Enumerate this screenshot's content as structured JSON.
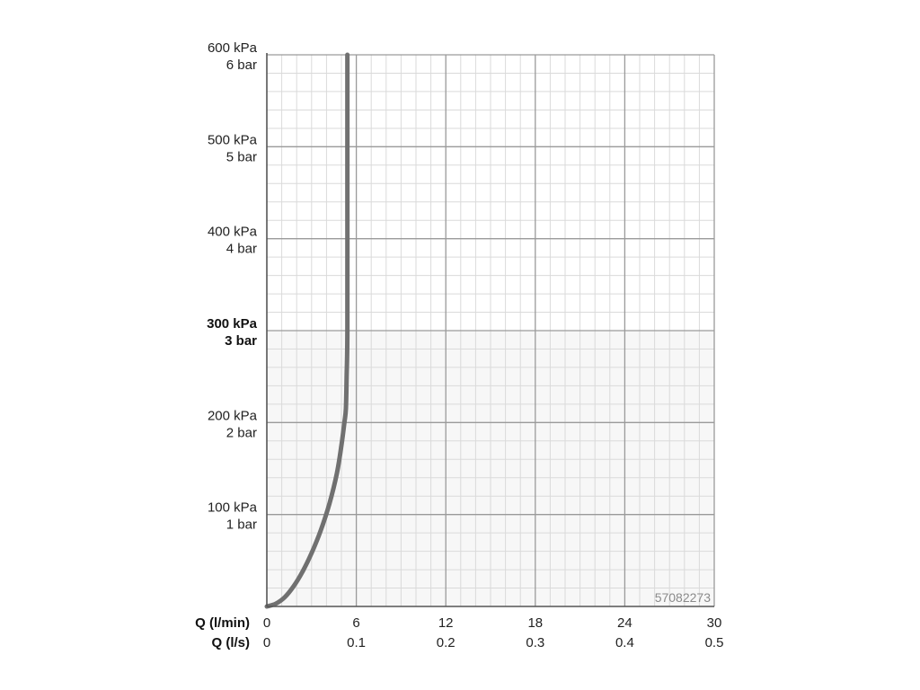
{
  "chart_data": {
    "type": "line",
    "title": "",
    "product_code": "57082273",
    "y_ticks": [
      {
        "value": 0,
        "kpa": "",
        "bar": "",
        "bold": false
      },
      {
        "value": 100,
        "kpa": "100 kPa",
        "bar": "1 bar",
        "bold": false
      },
      {
        "value": 200,
        "kpa": "200 kPa",
        "bar": "2 bar",
        "bold": false
      },
      {
        "value": 300,
        "kpa": "300 kPa",
        "bar": "3 bar",
        "bold": true
      },
      {
        "value": 400,
        "kpa": "400 kPa",
        "bar": "4 bar",
        "bold": false
      },
      {
        "value": 500,
        "kpa": "500 kPa",
        "bar": "5 bar",
        "bold": false
      },
      {
        "value": 600,
        "kpa": "600 kPa",
        "bar": "6 bar",
        "bold": false
      }
    ],
    "x_axis_primary_label": "Q (l/min)",
    "x_axis_secondary_label": "Q (l/s)",
    "x_ticks": [
      {
        "value": 0,
        "lmin": "0",
        "ls": "0"
      },
      {
        "value": 6,
        "lmin": "6",
        "ls": "0.1"
      },
      {
        "value": 12,
        "lmin": "12",
        "ls": "0.2"
      },
      {
        "value": 18,
        "lmin": "18",
        "ls": "0.3"
      },
      {
        "value": 24,
        "lmin": "24",
        "ls": "0.4"
      },
      {
        "value": 30,
        "lmin": "30",
        "ls": "0.5"
      }
    ],
    "xlim": [
      0,
      30
    ],
    "ylim": [
      0,
      600
    ],
    "grid": true,
    "series": [
      {
        "color": "#707070",
        "x": [
          0,
          0.6,
          1.2,
          1.8,
          2.4,
          3.0,
          3.6,
          4.2,
          4.7,
          5.0,
          5.2,
          5.3,
          5.35,
          5.4,
          5.4,
          5.4
        ],
        "y": [
          0,
          3,
          10,
          22,
          38,
          58,
          82,
          112,
          145,
          175,
          200,
          215,
          250,
          300,
          450,
          600
        ]
      }
    ]
  }
}
